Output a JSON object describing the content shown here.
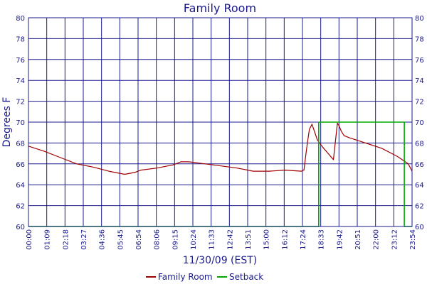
{
  "chart_data": {
    "type": "line",
    "title": "Family Room",
    "xlabel": "11/30/09 (EST)",
    "ylabel": "Degrees F",
    "ylim": [
      60,
      80
    ],
    "y_ticks": [
      60,
      62,
      64,
      66,
      68,
      70,
      72,
      74,
      76,
      78,
      80
    ],
    "x_range_minutes": [
      0,
      1434
    ],
    "x_tick_labels": [
      "00:00",
      "01:09",
      "02:18",
      "03:27",
      "04:36",
      "05:45",
      "06:54",
      "08:06",
      "09:15",
      "10:24",
      "11:33",
      "12:42",
      "13:51",
      "15:00",
      "16:12",
      "17:24",
      "18:33",
      "19:42",
      "20:51",
      "22:00",
      "23:12",
      "23:54"
    ],
    "grid": true,
    "legend_position": "bottom",
    "series": [
      {
        "name": "Family Room",
        "color": "#a00000",
        "x": [
          0,
          60,
          120,
          180,
          240,
          300,
          360,
          400,
          420,
          480,
          540,
          570,
          600,
          660,
          720,
          780,
          840,
          900,
          960,
          1020,
          1030,
          1040,
          1050,
          1060,
          1080,
          1100,
          1140,
          1155,
          1160,
          1170,
          1180,
          1200,
          1260,
          1320,
          1380,
          1420,
          1434
        ],
        "y": [
          67.7,
          67.2,
          66.6,
          66.0,
          65.7,
          65.3,
          65.0,
          65.2,
          65.4,
          65.6,
          65.9,
          66.2,
          66.2,
          66.0,
          65.8,
          65.6,
          65.3,
          65.3,
          65.4,
          65.3,
          65.4,
          67.5,
          69.3,
          69.8,
          68.3,
          67.6,
          66.4,
          69.9,
          69.7,
          69.1,
          68.7,
          68.5,
          68.0,
          67.5,
          66.7,
          66.0,
          65.3
        ]
      },
      {
        "name": "Setback",
        "color": "#00aa00",
        "x": [
          0,
          1085,
          1085,
          1405,
          1405,
          1434
        ],
        "y": [
          60,
          60,
          70,
          70,
          60,
          60
        ]
      }
    ]
  }
}
